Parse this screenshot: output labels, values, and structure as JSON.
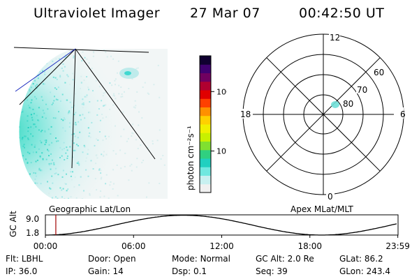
{
  "header": {
    "instrument": "Ultraviolet Imager",
    "date": "27 Mar 07",
    "time": "00:42:50 UT"
  },
  "colorbar": {
    "unit_label": "photon cm⁻²s⁻¹",
    "ticks": [
      {
        "label": "100",
        "value": 100
      },
      {
        "label": "10",
        "value": 10
      }
    ],
    "colors": [
      "#f0f0f0",
      "#c8f0f0",
      "#70e8e0",
      "#20d0c0",
      "#30d080",
      "#80e030",
      "#c8f000",
      "#f0f000",
      "#ffd000",
      "#ff9000",
      "#ff4000",
      "#e00000",
      "#b00030",
      "#700060",
      "#400070",
      "#100030"
    ]
  },
  "polar_plot": {
    "mlt_labels": {
      "top": "12",
      "right": "6",
      "bottom": "0",
      "left": "18"
    },
    "lat_labels": [
      "60",
      "70",
      "80"
    ]
  },
  "timeline": {
    "left_label": "Geographic Lat/Lon",
    "right_label": "Apex MLat/MLT",
    "y_axis_title": "GC Alt",
    "y_ticks": [
      "9.0",
      "1.8"
    ],
    "y_range": [
      1.8,
      9.0
    ],
    "x_ticks": [
      "00:00",
      "06:00",
      "12:00",
      "18:00",
      "23:59"
    ],
    "x_range_hours": [
      0,
      24
    ],
    "current_time_hours": 0.71,
    "marker_color": "#a00000",
    "orbit_period_hours": 18.8,
    "apogee_time_hours": 9.4,
    "perigee_time_hours": 18.8
  },
  "footer": {
    "row1": [
      {
        "key": "Flt:",
        "value": "LBHL"
      },
      {
        "key": "Door:",
        "value": "Open"
      },
      {
        "key": "Mode:",
        "value": "Normal"
      },
      {
        "key": "GC Alt:",
        "value": "2.0 Re"
      },
      {
        "key": "GLat:",
        "value": "86.2"
      }
    ],
    "row2": [
      {
        "key": "IP:",
        "value": "36.0"
      },
      {
        "key": "Gain:",
        "value": "14"
      },
      {
        "key": "Dsp:",
        "value": "0.1"
      },
      {
        "key": "Seq:",
        "value": "39"
      },
      {
        "key": "GLon:",
        "value": "243.4"
      }
    ]
  }
}
